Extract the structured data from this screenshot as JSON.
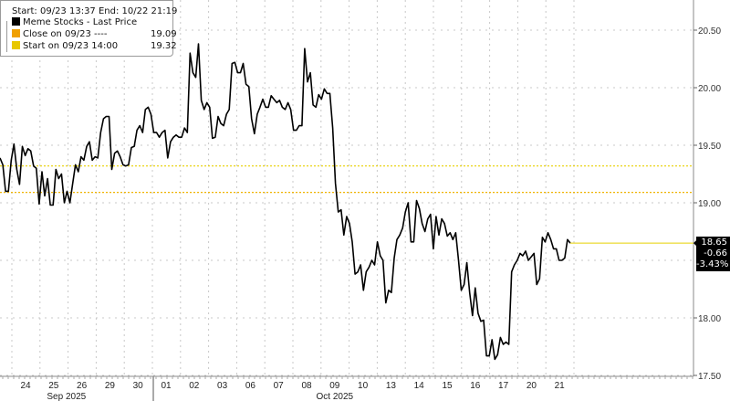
{
  "chart_data": {
    "type": "line",
    "legend": {
      "header": "Start: 09/23 13:37 End: 10/22 21:19",
      "entries": [
        {
          "label": "Meme Stocks - Last Price",
          "color": "#000000",
          "value": ""
        },
        {
          "label": "Close on 09/23 ----",
          "color": "#f0a000",
          "value": "19.09"
        },
        {
          "label": "Start on 09/23 14:00",
          "color": "#e8c800",
          "value": "19.32"
        }
      ],
      "placement": "top-left"
    },
    "x_range": [
      "09/23 13:37",
      "10/22 21:19"
    ],
    "x_tick_labels": [
      "24",
      "25",
      "26",
      "29",
      "30",
      "01",
      "02",
      "03",
      "06",
      "07",
      "08",
      "09",
      "10",
      "13",
      "14",
      "15",
      "16",
      "17",
      "20",
      "21"
    ],
    "x_month_labels": [
      "Sep 2025",
      "Oct 2025"
    ],
    "y_ticks": [
      "20.50",
      "20.00",
      "19.50",
      "19.00",
      "18.00",
      "17.50"
    ],
    "y_tick_values": [
      20.5,
      20.0,
      19.5,
      19.0,
      18.0,
      17.5
    ],
    "ylim": [
      17.5,
      20.5
    ],
    "y_axis_side": "right",
    "grid": true,
    "reference_lines": [
      {
        "name": "Close on 09/23",
        "value": 19.09,
        "color": "#f0b400",
        "style": "dotted"
      },
      {
        "name": "Start on 09/23 14:00",
        "value": 19.32,
        "color": "#e8d000",
        "style": "dotted"
      }
    ],
    "last_price_line": {
      "value": 18.65,
      "color": "#e8d000"
    },
    "last_tag": {
      "price": "18.65",
      "change": "-0.66",
      "pct": "-3.43%"
    },
    "series": [
      {
        "color": "#000000",
        "values": [
          19.39,
          19.33,
          19.1,
          19.1,
          19.37,
          19.51,
          19.29,
          19.16,
          19.49,
          19.41,
          19.47,
          19.45,
          19.32,
          19.3,
          18.99,
          19.27,
          19.06,
          19.21,
          18.98,
          18.98,
          19.29,
          19.21,
          19.25,
          19.0,
          19.1,
          19.0,
          19.17,
          19.33,
          19.27,
          19.4,
          19.37,
          19.49,
          19.53,
          19.37,
          19.4,
          19.39,
          19.61,
          19.73,
          19.75,
          19.75,
          19.29,
          19.43,
          19.45,
          19.4,
          19.33,
          19.32,
          19.33,
          19.48,
          19.49,
          19.63,
          19.67,
          19.61,
          19.81,
          19.83,
          19.77,
          19.61,
          19.61,
          19.57,
          19.61,
          19.63,
          19.39,
          19.53,
          19.57,
          19.59,
          19.57,
          19.57,
          19.65,
          19.61,
          20.3,
          20.13,
          20.09,
          20.38,
          19.89,
          19.81,
          19.87,
          19.83,
          19.56,
          19.57,
          19.75,
          19.69,
          19.67,
          19.77,
          19.81,
          20.21,
          20.22,
          20.13,
          20.13,
          20.21,
          20.03,
          20.01,
          19.73,
          19.6,
          19.77,
          19.83,
          19.9,
          19.83,
          19.83,
          19.93,
          19.9,
          19.87,
          19.89,
          19.83,
          19.81,
          19.87,
          19.81,
          19.63,
          19.63,
          19.67,
          19.67,
          20.34,
          20.05,
          20.13,
          19.85,
          19.83,
          19.94,
          19.9,
          19.99,
          19.95,
          19.95,
          19.65,
          19.17,
          18.92,
          18.94,
          18.72,
          18.88,
          18.82,
          18.66,
          18.38,
          18.4,
          18.46,
          18.24,
          18.4,
          18.44,
          18.5,
          18.46,
          18.66,
          18.54,
          18.5,
          18.13,
          18.24,
          18.22,
          18.52,
          18.68,
          18.72,
          18.78,
          18.92,
          19.0,
          18.66,
          18.66,
          19.02,
          18.95,
          18.82,
          18.75,
          18.86,
          18.9,
          18.6,
          18.88,
          18.72,
          18.86,
          18.82,
          18.71,
          18.74,
          18.68,
          18.74,
          18.5,
          18.24,
          18.29,
          18.48,
          18.22,
          18.02,
          18.26,
          18.04,
          17.97,
          17.98,
          17.67,
          17.67,
          17.81,
          17.64,
          17.68,
          17.83,
          17.77,
          17.79,
          17.77,
          18.4,
          18.46,
          18.5,
          18.56,
          18.54,
          18.58,
          18.5,
          18.53,
          18.56,
          18.29,
          18.34,
          18.7,
          18.66,
          18.74,
          18.68,
          18.6,
          18.6,
          18.5,
          18.5,
          18.52,
          18.68,
          18.65
        ]
      }
    ]
  }
}
